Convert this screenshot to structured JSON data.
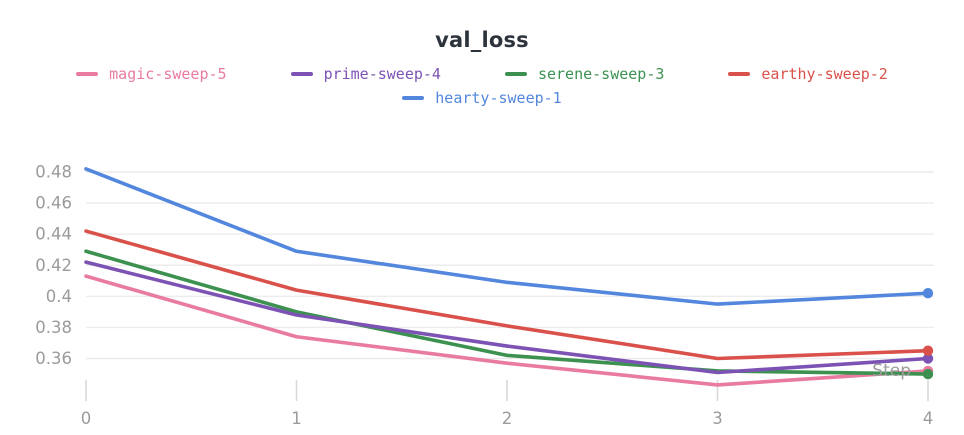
{
  "title": "val_loss",
  "colors": {
    "background": "#ffffff",
    "title_text": "#2d333c",
    "gridline": "#ececec",
    "axis_tick_mark": "#d9d9d9",
    "axis_label_text": "#9b9b9b"
  },
  "chart_data": {
    "type": "line",
    "title": "val_loss",
    "xlabel": "Step",
    "ylabel": "",
    "x": [
      0,
      1,
      2,
      3,
      4
    ],
    "x_tick_labels": [
      "0",
      "1",
      "2",
      "3",
      "4"
    ],
    "y_ticks": [
      {
        "label": "0.48",
        "value": 0.48
      },
      {
        "label": "0.46",
        "value": 0.46
      },
      {
        "label": "0.44",
        "value": 0.44
      },
      {
        "label": "0.42",
        "value": 0.42
      },
      {
        "label": "0.4",
        "value": 0.4
      },
      {
        "label": "0.38",
        "value": 0.38
      },
      {
        "label": "0.36",
        "value": 0.36
      }
    ],
    "ylim": [
      0.34,
      0.49
    ],
    "grid": true,
    "legend_position": "top",
    "end_point_markers": true,
    "series": [
      {
        "name": "magic-sweep-5",
        "color": "#e87b9e",
        "z": 1,
        "values": [
          0.413,
          0.374,
          0.357,
          0.343,
          0.352
        ]
      },
      {
        "name": "prime-sweep-4",
        "color": "#7c53b4",
        "z": 3,
        "values": [
          0.422,
          0.388,
          0.368,
          0.351,
          0.36
        ]
      },
      {
        "name": "serene-sweep-3",
        "color": "#3d9150",
        "z": 2,
        "values": [
          0.429,
          0.39,
          0.362,
          0.352,
          0.35
        ]
      },
      {
        "name": "earthy-sweep-2",
        "color": "#d9514a",
        "z": 4,
        "values": [
          0.442,
          0.404,
          0.381,
          0.36,
          0.365
        ]
      },
      {
        "name": "hearty-sweep-1",
        "color": "#5387dd",
        "z": 5,
        "values": [
          0.482,
          0.429,
          0.409,
          0.395,
          0.402
        ]
      }
    ]
  }
}
